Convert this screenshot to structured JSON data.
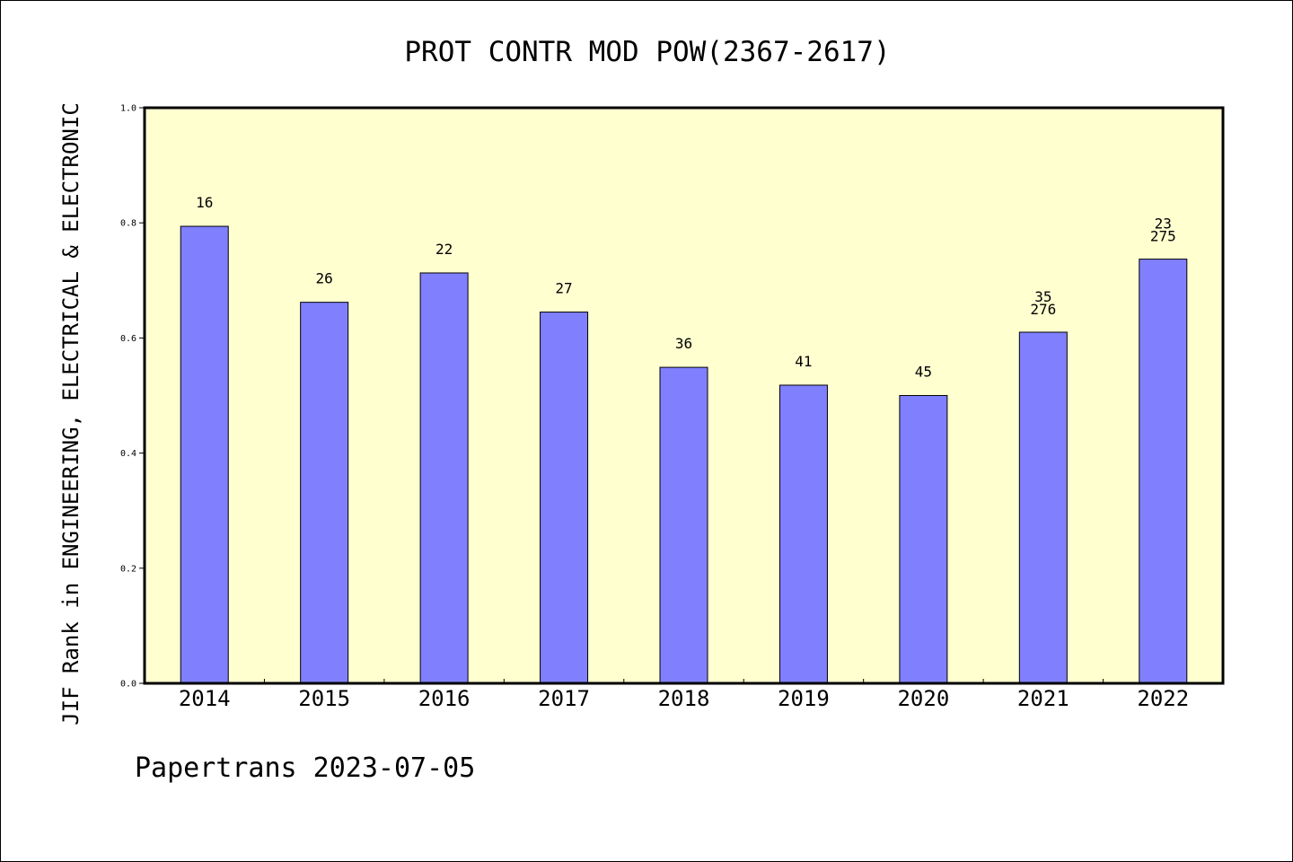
{
  "chart_data": {
    "type": "bar",
    "title": "PROT CONTR MOD POW(2367-2617)",
    "xlabel": "",
    "ylabel": "JIF Rank in ENGINEERING, ELECTRICAL & ELECTRONIC",
    "categories": [
      "2014",
      "2015",
      "2016",
      "2017",
      "2018",
      "2019",
      "2020",
      "2021",
      "2022"
    ],
    "values": [
      0.794,
      0.662,
      0.713,
      0.645,
      0.549,
      0.518,
      0.5,
      0.61,
      0.737
    ],
    "bar_labels": [
      [
        "16"
      ],
      [
        "26"
      ],
      [
        "22"
      ],
      [
        "27"
      ],
      [
        "36"
      ],
      [
        "41"
      ],
      [
        "45"
      ],
      [
        "35",
        "276"
      ],
      [
        "23",
        "275"
      ]
    ],
    "ylim": [
      0,
      1.0
    ],
    "yticks": [
      "0.0",
      "0.2",
      "0.4",
      "0.6",
      "0.8",
      "1.0"
    ],
    "grid": false,
    "colors": {
      "plot_background": "#ffffd0",
      "bar_fill": "#8080ff",
      "bar_stroke": "#000000"
    }
  },
  "footer": "Papertrans 2023-07-05"
}
